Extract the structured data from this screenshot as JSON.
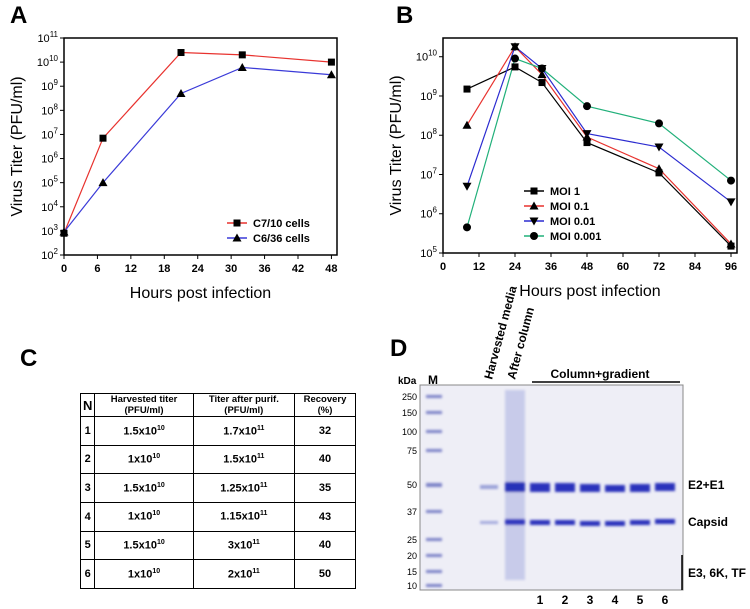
{
  "chart_data": [
    {
      "type": "line",
      "panel": "A",
      "xlabel": "Hours post infection",
      "ylabel": "Virus Titer (PFU/ml)",
      "log_y": true,
      "legend": "lower right",
      "xlim": [
        0,
        49
      ],
      "xticks": [
        0,
        6,
        12,
        18,
        24,
        30,
        36,
        42,
        48
      ],
      "ylim": [
        100,
        100000000000
      ],
      "yticks": [
        {
          "value": 100,
          "label": "10",
          "sup": "2"
        },
        {
          "value": 1000,
          "label": "10",
          "sup": "3"
        },
        {
          "value": 10000,
          "label": "10",
          "sup": "4"
        },
        {
          "value": 100000,
          "label": "10",
          "sup": "5"
        },
        {
          "value": 1000000,
          "label": "10",
          "sup": "6"
        },
        {
          "value": 10000000,
          "label": "10",
          "sup": "7"
        },
        {
          "value": 100000000,
          "label": "10",
          "sup": "8"
        },
        {
          "value": 1000000000,
          "label": "10",
          "sup": "9"
        },
        {
          "value": 10000000000,
          "label": "10",
          "sup": "10"
        },
        {
          "value": 100000000000,
          "label": "10",
          "sup": "11"
        }
      ],
      "series": [
        {
          "name": "C7/10 cells",
          "color": "#e8322e",
          "marker": "square",
          "marker_color": "#000000",
          "x": [
            0,
            7,
            21,
            32,
            48
          ],
          "values": [
            800,
            7000000,
            25000000000,
            20000000000,
            10000000000
          ]
        },
        {
          "name": "C6/36 cells",
          "color": "#3a3ad8",
          "marker": "triangle",
          "marker_color": "#000000",
          "x": [
            0,
            7,
            21,
            32,
            48
          ],
          "values": [
            900,
            100000,
            500000000,
            6000000000,
            3000000000
          ]
        }
      ]
    },
    {
      "type": "line",
      "panel": "B",
      "xlabel": "Hours post infection",
      "ylabel": "Virus Titer (PFU/ml)",
      "log_y": true,
      "legend": "lower center",
      "xlim": [
        0,
        98
      ],
      "xticks": [
        0,
        12,
        24,
        36,
        48,
        60,
        72,
        84,
        96
      ],
      "ylim": [
        100000,
        30000000000
      ],
      "yticks": [
        {
          "value": 100000,
          "label": "10",
          "sup": "5"
        },
        {
          "value": 1000000,
          "label": "10",
          "sup": "6"
        },
        {
          "value": 10000000,
          "label": "10",
          "sup": "7"
        },
        {
          "value": 100000000,
          "label": "10",
          "sup": "8"
        },
        {
          "value": 1000000000,
          "label": "10",
          "sup": "9"
        },
        {
          "value": 10000000000,
          "label": "10",
          "sup": "10"
        }
      ],
      "series": [
        {
          "name": "MOI 1",
          "color": "#000000",
          "marker": "square",
          "marker_color": "#000000",
          "x": [
            8,
            24,
            33,
            48,
            72,
            96
          ],
          "values": [
            1500000000,
            5500000000,
            2200000000,
            65000000,
            11000000,
            150000
          ]
        },
        {
          "name": "MOI 0.1",
          "color": "#e8322e",
          "marker": "triangle",
          "marker_color": "#000000",
          "x": [
            8,
            24,
            33,
            48,
            72,
            96
          ],
          "values": [
            180000000,
            18000000000,
            3500000000,
            90000000,
            14000000,
            170000
          ]
        },
        {
          "name": "MOI 0.01",
          "color": "#2b2bd0",
          "marker": "triangle-down",
          "marker_color": "#000000",
          "x": [
            8,
            24,
            33,
            48,
            72,
            96
          ],
          "values": [
            5000000,
            18000000000,
            5000000000,
            110000000,
            50000000,
            2000000
          ]
        },
        {
          "name": "MOI 0.001",
          "color": "#21b07a",
          "marker": "circle",
          "marker_color": "#000000",
          "x": [
            8,
            24,
            33,
            48,
            72,
            96
          ],
          "values": [
            450000,
            9000000000,
            5000000000,
            550000000,
            200000000,
            7000000
          ]
        }
      ]
    }
  ],
  "table": {
    "panel": "C",
    "header": [
      {
        "text": "N"
      },
      {
        "text": "Harvested titer (PFU/ml)"
      },
      {
        "text": "Titer after purif. (PFU/ml)"
      },
      {
        "text": "Recovery (%)"
      }
    ],
    "rows": [
      [
        {
          "text": "1"
        },
        {
          "text": "1.5x10",
          "sup": "10"
        },
        {
          "text": "1.7x10",
          "sup": "11"
        },
        {
          "text": "32"
        }
      ],
      [
        {
          "text": "2"
        },
        {
          "text": "1x10",
          "sup": "10"
        },
        {
          "text": "1.5x10",
          "sup": "11"
        },
        {
          "text": "40"
        }
      ],
      [
        {
          "text": "3"
        },
        {
          "text": "1.5x10",
          "sup": "10"
        },
        {
          "text": "1.25x10",
          "sup": "11"
        },
        {
          "text": "35"
        }
      ],
      [
        {
          "text": "4"
        },
        {
          "text": "1x10",
          "sup": "10"
        },
        {
          "text": "1.15x10",
          "sup": "11"
        },
        {
          "text": "43"
        }
      ],
      [
        {
          "text": "5"
        },
        {
          "text": "1.5x10",
          "sup": "10"
        },
        {
          "text": "3x10",
          "sup": "11"
        },
        {
          "text": "40"
        }
      ],
      [
        {
          "text": "6"
        },
        {
          "text": "1x10",
          "sup": "10"
        },
        {
          "text": "2x10",
          "sup": "11"
        },
        {
          "text": "50"
        }
      ]
    ]
  },
  "gel": {
    "panel": "D",
    "unit": "kDa",
    "marker_lane": "M",
    "lanes_top": [
      "Harvested media",
      "After column"
    ],
    "group": "Column+gradient",
    "markers": [
      "250",
      "150",
      "100",
      "75",
      "50",
      "37",
      "25",
      "20",
      "15",
      "10"
    ],
    "lanes": [
      "1",
      "2",
      "3",
      "4",
      "5",
      "6"
    ],
    "bands": [
      "E2+E1",
      "Capsid",
      "E3, 6K, TF"
    ]
  }
}
